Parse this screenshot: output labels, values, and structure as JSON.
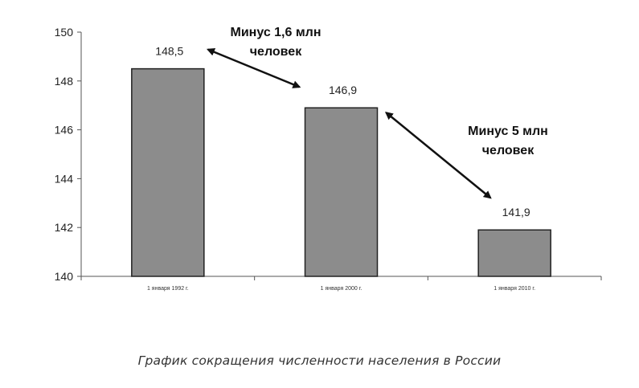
{
  "chart_data": {
    "type": "bar",
    "categories": [
      "1 января 1992 г.",
      "1 января 2000 г.",
      "1 января 2010 г."
    ],
    "values": [
      148.5,
      146.9,
      141.9
    ],
    "data_labels": [
      "148,5",
      "146,9",
      "141,9"
    ],
    "ylim": [
      140,
      150
    ],
    "yticks": [
      140,
      142,
      144,
      146,
      148,
      150
    ],
    "grid": false,
    "bar_color": "#8c8c8c",
    "annotations": [
      {
        "lines": [
          "Минус 1,6 млн",
          "человек"
        ],
        "from_category": 0,
        "to_category": 1
      },
      {
        "lines": [
          "Минус 5 млн",
          "человек"
        ],
        "from_category": 1,
        "to_category": 2
      }
    ]
  },
  "caption": "График сокращения численности населения в России"
}
